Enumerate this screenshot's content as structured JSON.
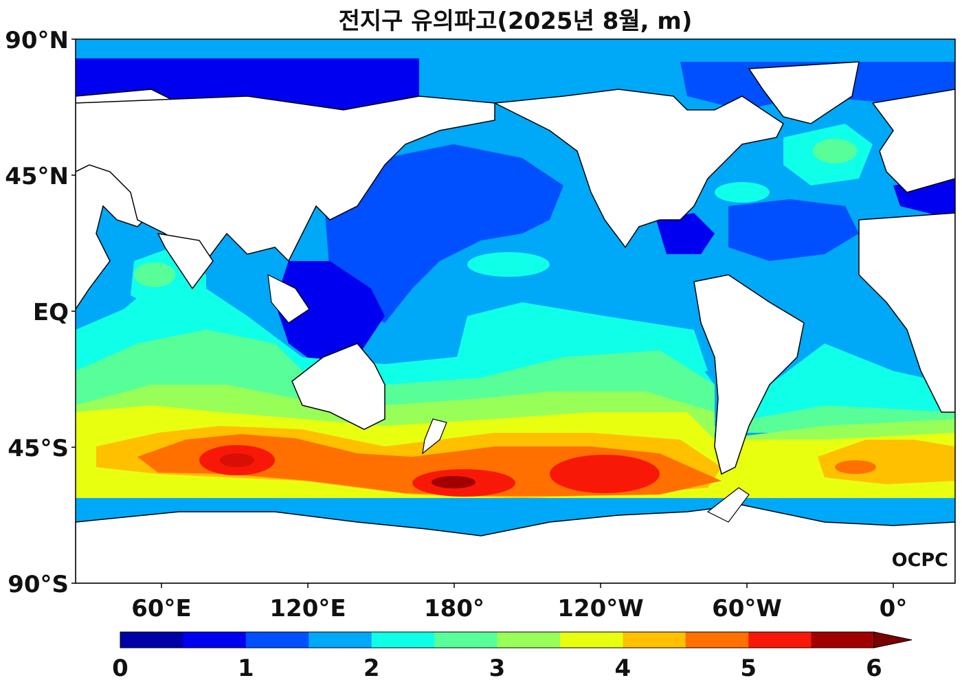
{
  "title": "전지구 유의파고(2025년 8월, m)",
  "y_axis_labels": [
    "90°N",
    "45°N",
    "EQ",
    "45°S",
    "90°S"
  ],
  "x_axis_labels": [
    "60°E",
    "120°E",
    "180°",
    "120°W",
    "60°W",
    "0°"
  ],
  "colorbar": {
    "colors": [
      "#0000a8",
      "#0000f0",
      "#0050ff",
      "#00a8f8",
      "#10ffe8",
      "#58ff98",
      "#98ff58",
      "#e8ff10",
      "#ffc000",
      "#ff7000",
      "#f81808",
      "#a00000"
    ],
    "tick_labels": [
      "0",
      "1",
      "2",
      "3",
      "4",
      "5",
      "6"
    ],
    "extend_color": "#7a0000"
  },
  "watermark": "OCPC",
  "colors": {
    "ocean_base": "#00a8f8",
    "land": "#ffffff",
    "coastline": "#000000"
  }
}
